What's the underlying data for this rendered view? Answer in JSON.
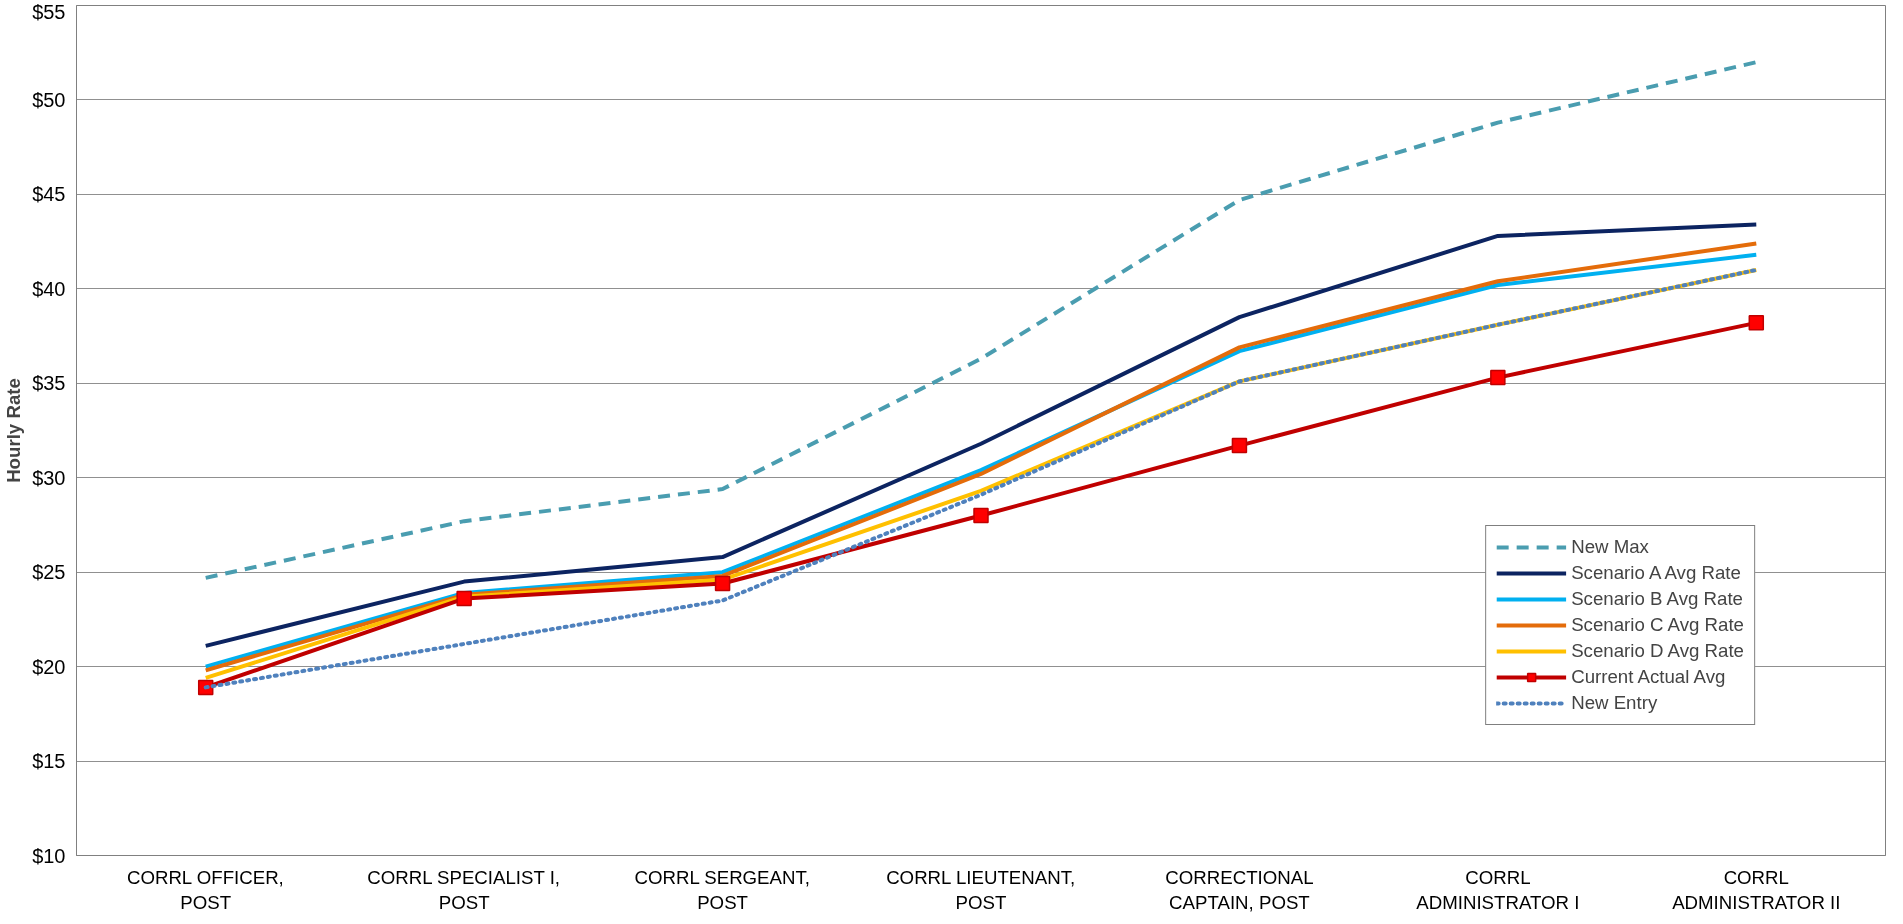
{
  "chart_data": {
    "type": "line",
    "ylabel": "Hourly Rate",
    "categories": [
      "CORRL OFFICER,\nPOST",
      "CORRL SPECIALIST I,\nPOST",
      "CORRL SERGEANT,\nPOST",
      "CORRL LIEUTENANT,\nPOST",
      "CORRECTIONAL\nCAPTAIN, POST",
      "CORRL\nADMINISTRATOR I",
      "CORRL\nADMINISTRATOR II"
    ],
    "ylim": [
      10,
      55
    ],
    "yticks": [
      {
        "value": 10,
        "label": "$10"
      },
      {
        "value": 15,
        "label": "$15"
      },
      {
        "value": 20,
        "label": "$20"
      },
      {
        "value": 25,
        "label": "$25"
      },
      {
        "value": 30,
        "label": "$30"
      },
      {
        "value": 35,
        "label": "$35"
      },
      {
        "value": 40,
        "label": "$40"
      },
      {
        "value": 45,
        "label": "$45"
      },
      {
        "value": 50,
        "label": "$50"
      },
      {
        "value": 55,
        "label": "$55"
      }
    ],
    "grid": "y",
    "legend": "bottom right",
    "series": [
      {
        "name": "New Max",
        "color": "#4a9db0",
        "line_style": "dashed",
        "values": [
          24.7,
          27.7,
          29.4,
          36.3,
          44.7,
          48.8,
          52.0
        ]
      },
      {
        "name": "Scenario A Avg Rate",
        "color": "#0c2461",
        "line_style": "solid",
        "values": [
          21.1,
          24.5,
          25.8,
          31.8,
          38.5,
          42.8,
          43.4
        ]
      },
      {
        "name": "Scenario B Avg Rate",
        "color": "#00b0f0",
        "line_style": "solid",
        "values": [
          20.0,
          23.9,
          25.0,
          30.4,
          36.7,
          40.2,
          41.8
        ]
      },
      {
        "name": "Scenario C Avg Rate",
        "color": "#e46c0a",
        "line_style": "solid",
        "values": [
          19.8,
          23.8,
          24.8,
          30.2,
          36.9,
          40.4,
          42.4
        ]
      },
      {
        "name": "Scenario D Avg Rate",
        "color": "#ffc000",
        "line_style": "solid",
        "values": [
          19.4,
          23.7,
          24.6,
          29.3,
          35.1,
          38.1,
          41.0
        ]
      },
      {
        "name": "Current Actual Avg",
        "color": "#c00000",
        "line_style": "solid",
        "marker": "square",
        "values": [
          18.9,
          23.6,
          24.4,
          28.0,
          31.7,
          35.3,
          38.2
        ]
      },
      {
        "name": "New Entry",
        "color": "#4f81bd",
        "line_style": "dotted",
        "values": [
          18.9,
          21.2,
          23.5,
          29.1,
          35.1,
          38.1,
          41.0
        ]
      }
    ]
  }
}
